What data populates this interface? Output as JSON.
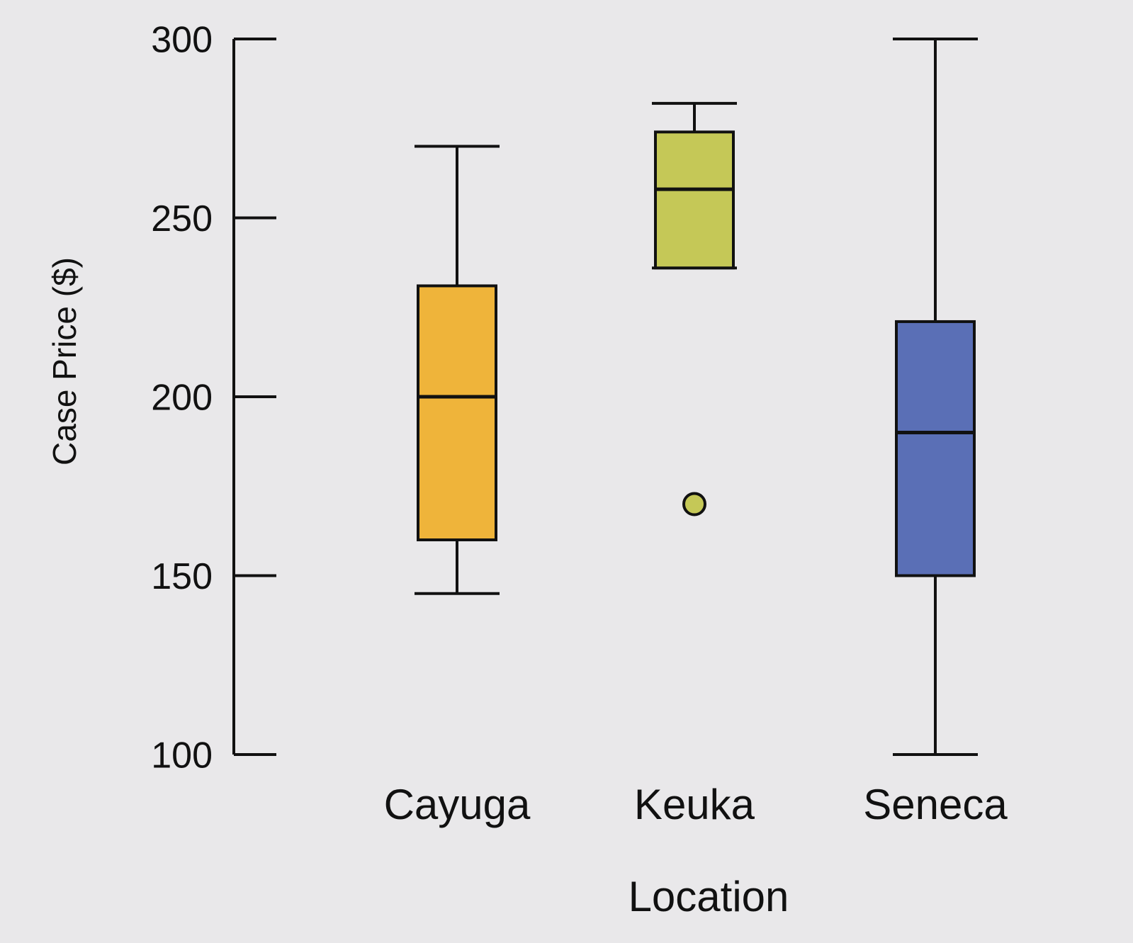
{
  "chart_data": {
    "type": "box",
    "y_label": "Case Price ($)",
    "x_label": "Location",
    "categories": [
      "Cayuga",
      "Keuka",
      "Seneca"
    ],
    "colors": [
      "#efb43a",
      "#c5c857",
      "#5a6fb6"
    ],
    "boxes": [
      {
        "min": 145,
        "q1": 160,
        "median": 200,
        "q3": 231,
        "max": 270,
        "outliers": []
      },
      {
        "min": 236,
        "q1": 236,
        "median": 258,
        "q3": 274,
        "max": 282,
        "outliers": [
          170
        ]
      },
      {
        "min": 100,
        "q1": 150,
        "median": 190,
        "q3": 221,
        "max": 300,
        "outliers": []
      }
    ],
    "ylim": [
      100,
      300
    ],
    "yticks": [
      100,
      150,
      200,
      250,
      300
    ]
  }
}
